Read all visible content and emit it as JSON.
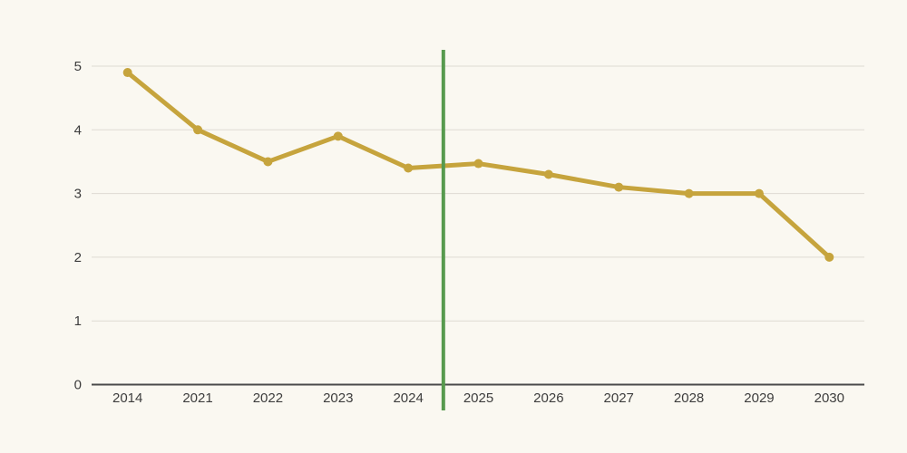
{
  "page": {
    "background_color": "#FAF8F1"
  },
  "chart_data": {
    "type": "line",
    "title": "",
    "xlabel": "",
    "ylabel": "",
    "categories": [
      "2014",
      "2021",
      "2022",
      "2023",
      "2024",
      "2025",
      "2026",
      "2027",
      "2028",
      "2029",
      "2030"
    ],
    "series": [
      {
        "name": "value",
        "values": [
          4.9,
          4.0,
          3.5,
          3.9,
          3.4,
          3.47,
          3.3,
          3.1,
          3.0,
          3.0,
          2.0
        ]
      }
    ],
    "ylim": [
      0,
      5
    ],
    "yticks": [
      0,
      1,
      2,
      3,
      4,
      5
    ],
    "grid": true,
    "legend": false,
    "marker": "circle",
    "divider": {
      "kind": "vertical-line",
      "between": [
        "2024",
        "2025"
      ]
    },
    "colors": {
      "line": "#C6A43D",
      "marker": "#C6A43D",
      "divider": "#579A4E",
      "gridline": "#DEDBD3",
      "axis": "#4A4A4A",
      "tick_label": "#3D3D3D",
      "background": "#FAF8F1"
    }
  }
}
